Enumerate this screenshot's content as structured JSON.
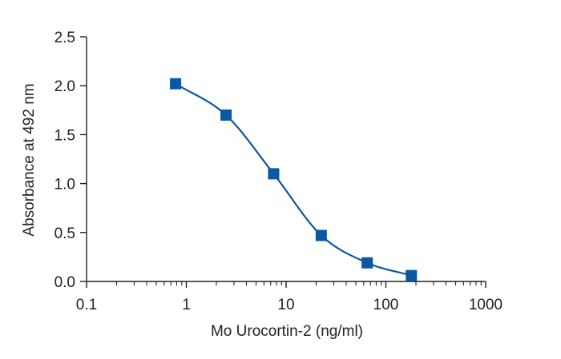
{
  "chart_data": {
    "type": "scatter",
    "x_scale": "log",
    "xlabel": "Mo Urocortin-2 (ng/ml)",
    "ylabel": "Absorbance at 492 nm",
    "xlim": [
      0.1,
      1000
    ],
    "ylim": [
      0,
      2.5
    ],
    "x_ticks": [
      {
        "value": 0.1,
        "label": "0.1"
      },
      {
        "value": 1,
        "label": "1"
      },
      {
        "value": 10,
        "label": "10"
      },
      {
        "value": 100,
        "label": "100"
      },
      {
        "value": 1000,
        "label": "1000"
      }
    ],
    "y_ticks": [
      {
        "value": 0,
        "label": "0.0"
      },
      {
        "value": 0.5,
        "label": "0.5"
      },
      {
        "value": 1.0,
        "label": "1.0"
      },
      {
        "value": 1.5,
        "label": "1.5"
      },
      {
        "value": 2.0,
        "label": "2.0"
      },
      {
        "value": 2.5,
        "label": "2.5"
      }
    ],
    "grid": false,
    "series": [
      {
        "marker": "square",
        "color": "#0b57a4",
        "x": [
          0.78,
          2.5,
          7.5,
          22.5,
          65,
          180
        ],
        "y": [
          2.02,
          1.7,
          1.1,
          0.47,
          0.19,
          0.06
        ],
        "fit_curve": true
      }
    ]
  }
}
